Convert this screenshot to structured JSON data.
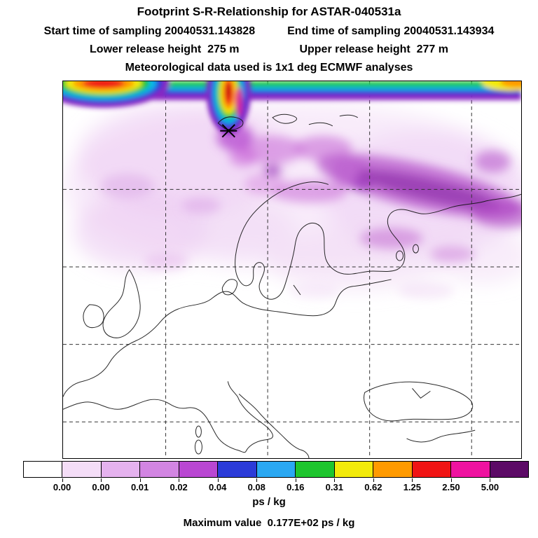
{
  "header": {
    "title": "Footprint S-R-Relationship for ASTAR-040531a",
    "start_time_label": "Start time of sampling 20040531.143828",
    "end_time_label": "End time of sampling 20040531.143934",
    "lower_height_label": "Lower release height  275 m",
    "upper_height_label": "Upper release height  277 m",
    "met_label": "Meteorological data used is 1x1 deg ECMWF analyses"
  },
  "colorbar": {
    "tick_labels": [
      "0.00",
      "0.00",
      "0.01",
      "0.02",
      "0.04",
      "0.08",
      "0.16",
      "0.31",
      "0.62",
      "1.25",
      "2.50",
      "5.00"
    ],
    "segment_colors": [
      "#ffffff",
      "#f4ddf7",
      "#e5b2ee",
      "#d285e2",
      "#b947d2",
      "#2b3bd8",
      "#2aa8f2",
      "#1ec52e",
      "#f2ea0a",
      "#ff9a00",
      "#f01414",
      "#ef12a0",
      "#5c0a66"
    ],
    "units_label": "ps / kg"
  },
  "footer": {
    "max_value_label": "Maximum value  0.177E+02 ps / kg"
  },
  "chart_data": {
    "type": "heatmap",
    "title": "Footprint S-R-Relationship for ASTAR-040531a",
    "subtitle_lines": [
      "Start time of sampling 20040531.143828   End time of sampling 20040531.143934",
      "Lower release height  275 m   Upper release height  277 m",
      "Meteorological data used is 1x1 deg ECMWF analyses"
    ],
    "units": "ps / kg",
    "colorscale_boundaries": [
      0.0,
      0.0,
      0.01,
      0.02,
      0.04,
      0.08,
      0.16,
      0.31,
      0.62,
      1.25,
      2.5,
      5.0
    ],
    "colorscale_colors": [
      "#ffffff",
      "#f4ddf7",
      "#e5b2ee",
      "#d285e2",
      "#b947d2",
      "#2b3bd8",
      "#2aa8f2",
      "#1ec52e",
      "#f2ea0a",
      "#ff9a00",
      "#f01414",
      "#ef12a0",
      "#5c0a66"
    ],
    "maximum_value": "0.177E+02",
    "maximum_value_numeric": 17.7,
    "sampling_start": "20040531.143828",
    "sampling_end": "20040531.143934",
    "lower_release_height_m": 275,
    "upper_release_height_m": 277,
    "meteorology": "1x1 deg ECMWF analyses",
    "map_region": "Europe / Nordic seas with dashed lat-lon grid, coastlines drawn in black",
    "field_description": "Very high footprint values (full rainbow scale up to red) form a band along the northern map edge with a plume descending to the source marker near Svalbard; filamentary purple structures (0.001-0.1 ps/kg) extend over Scandinavia, the Baltic and northwest Russia; southern Europe is mostly below the lowest contour.",
    "source_marker": "black asterisk at plume tip near top-centre of map"
  }
}
